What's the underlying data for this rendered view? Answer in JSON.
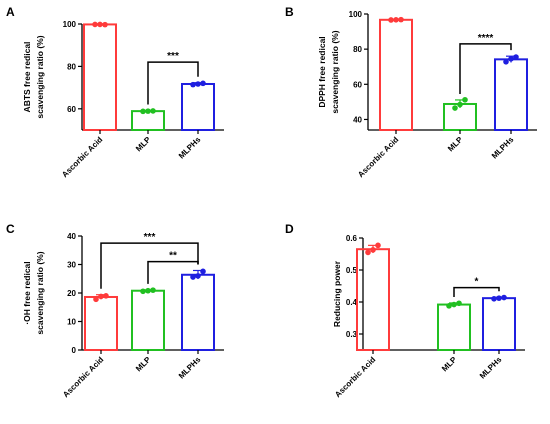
{
  "chart_data": [
    {
      "panel": "A",
      "type": "bar",
      "ylabel_lines": [
        "ABTS free redical",
        "scavenging ratio (%)"
      ],
      "ylim": [
        50,
        100
      ],
      "yticks": [
        60,
        80,
        100
      ],
      "categories": [
        "Ascorbic Acid",
        "MLP",
        "MLPHs"
      ],
      "colors": [
        "#ff3b3b",
        "#21c021",
        "#1f1fe0"
      ],
      "values": [
        99.8,
        58.9,
        71.7
      ],
      "errors": [
        0.2,
        0.3,
        0.6
      ],
      "points": [
        [
          99.8,
          99.8,
          99.7
        ],
        [
          58.8,
          58.9,
          59.0
        ],
        [
          71.4,
          71.7,
          72.0
        ]
      ],
      "significance": [
        {
          "from": 1,
          "to": 2,
          "label": "***",
          "y": 82
        }
      ]
    },
    {
      "panel": "B",
      "type": "bar",
      "ylabel_lines": [
        "DPPH free redical",
        "scavenging ratio (%)"
      ],
      "ylim": [
        34,
        100
      ],
      "yticks": [
        40,
        60,
        80,
        100
      ],
      "categories": [
        "Ascorbic Acid",
        "MLP",
        "MLPHs"
      ],
      "colors": [
        "#ff3b3b",
        "#21c021",
        "#1f1fe0"
      ],
      "values": [
        96.7,
        48.8,
        74.2
      ],
      "errors": [
        0.3,
        2.3,
        1.8
      ],
      "points": [
        [
          96.6,
          96.7,
          96.8
        ],
        [
          46.5,
          48.5,
          51.2
        ],
        [
          72.8,
          74.5,
          75.5
        ]
      ],
      "significance": [
        {
          "from": 1,
          "to": 2,
          "label": "****",
          "y": 83
        }
      ]
    },
    {
      "panel": "C",
      "type": "bar",
      "ylabel_lines": [
        "·OH free redical",
        "scavenging ratio (%)"
      ],
      "ylim": [
        0,
        40
      ],
      "yticks": [
        0,
        10,
        20,
        30,
        40
      ],
      "categories": [
        "Ascorbic Acid",
        "MLP",
        "MLPHs"
      ],
      "colors": [
        "#ff3b3b",
        "#21c021",
        "#1f1fe0"
      ],
      "values": [
        18.6,
        20.8,
        26.4
      ],
      "errors": [
        0.8,
        0.3,
        1.5
      ],
      "points": [
        [
          17.8,
          18.8,
          19.0
        ],
        [
          20.6,
          20.8,
          21.0
        ],
        [
          25.6,
          26.0,
          27.6
        ]
      ],
      "significance": [
        {
          "from": 0,
          "to": 2,
          "label": "***",
          "y": 37.5
        },
        {
          "from": 1,
          "to": 2,
          "label": "**",
          "y": 31
        }
      ]
    },
    {
      "panel": "D",
      "type": "bar",
      "ylabel_lines": [
        "Reducing power"
      ],
      "ylim": [
        0.25,
        0.6
      ],
      "yticks": [
        0.3,
        0.4,
        0.5,
        0.6
      ],
      "categories": [
        "Ascorbic Acid",
        "MLP",
        "MLPHs"
      ],
      "colors": [
        "#ff3b3b",
        "#21c021",
        "#1f1fe0"
      ],
      "values": [
        0.565,
        0.392,
        0.412
      ],
      "errors": [
        0.012,
        0.005,
        0.003
      ],
      "points": [
        [
          0.555,
          0.563,
          0.577
        ],
        [
          0.388,
          0.392,
          0.396
        ],
        [
          0.41,
          0.412,
          0.414
        ]
      ],
      "significance": [
        {
          "from": 1,
          "to": 2,
          "label": "*",
          "y": 0.445
        }
      ]
    }
  ]
}
